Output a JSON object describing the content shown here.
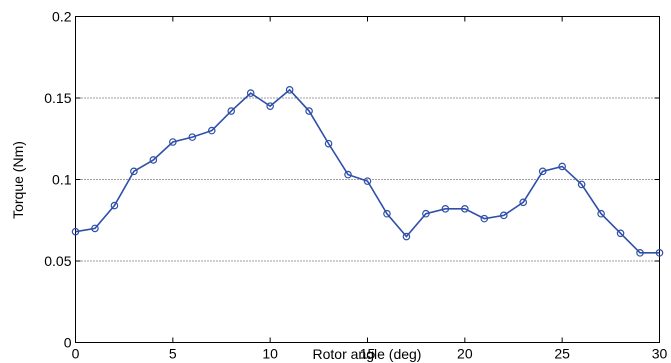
{
  "chart_data": {
    "type": "line",
    "title": "",
    "xlabel": "Rotor angle (deg)",
    "ylabel": "Torque (Nm)",
    "xlim": [
      0,
      30
    ],
    "ylim": [
      0,
      0.2
    ],
    "xticks": [
      0,
      5,
      10,
      15,
      20,
      25,
      30
    ],
    "xtick_labels": [
      "0",
      "5",
      "10",
      "15",
      "20",
      "25",
      "30"
    ],
    "yticks": [
      0,
      0.05,
      0.1,
      0.15,
      0.2
    ],
    "ytick_labels": [
      "0",
      "0.05",
      "0.1",
      "0.15",
      "0.2"
    ],
    "grid": "y-dotted",
    "legend": false,
    "marker": "circle",
    "color": "#2f4fa8",
    "series": [
      {
        "x": [
          0,
          1,
          2,
          3,
          4,
          5,
          6,
          7,
          8,
          9,
          10,
          11,
          12,
          13,
          14,
          15,
          16,
          17,
          18,
          19,
          20,
          21,
          22,
          23,
          24,
          25,
          26,
          27,
          28,
          29,
          30
        ],
        "y": [
          0.068,
          0.07,
          0.084,
          0.105,
          0.112,
          0.123,
          0.126,
          0.13,
          0.142,
          0.153,
          0.145,
          0.155,
          0.142,
          0.122,
          0.103,
          0.099,
          0.079,
          0.065,
          0.079,
          0.082,
          0.082,
          0.076,
          0.078,
          0.086,
          0.105,
          0.108,
          0.097,
          0.079,
          0.067,
          0.055,
          0.055
        ]
      }
    ]
  }
}
